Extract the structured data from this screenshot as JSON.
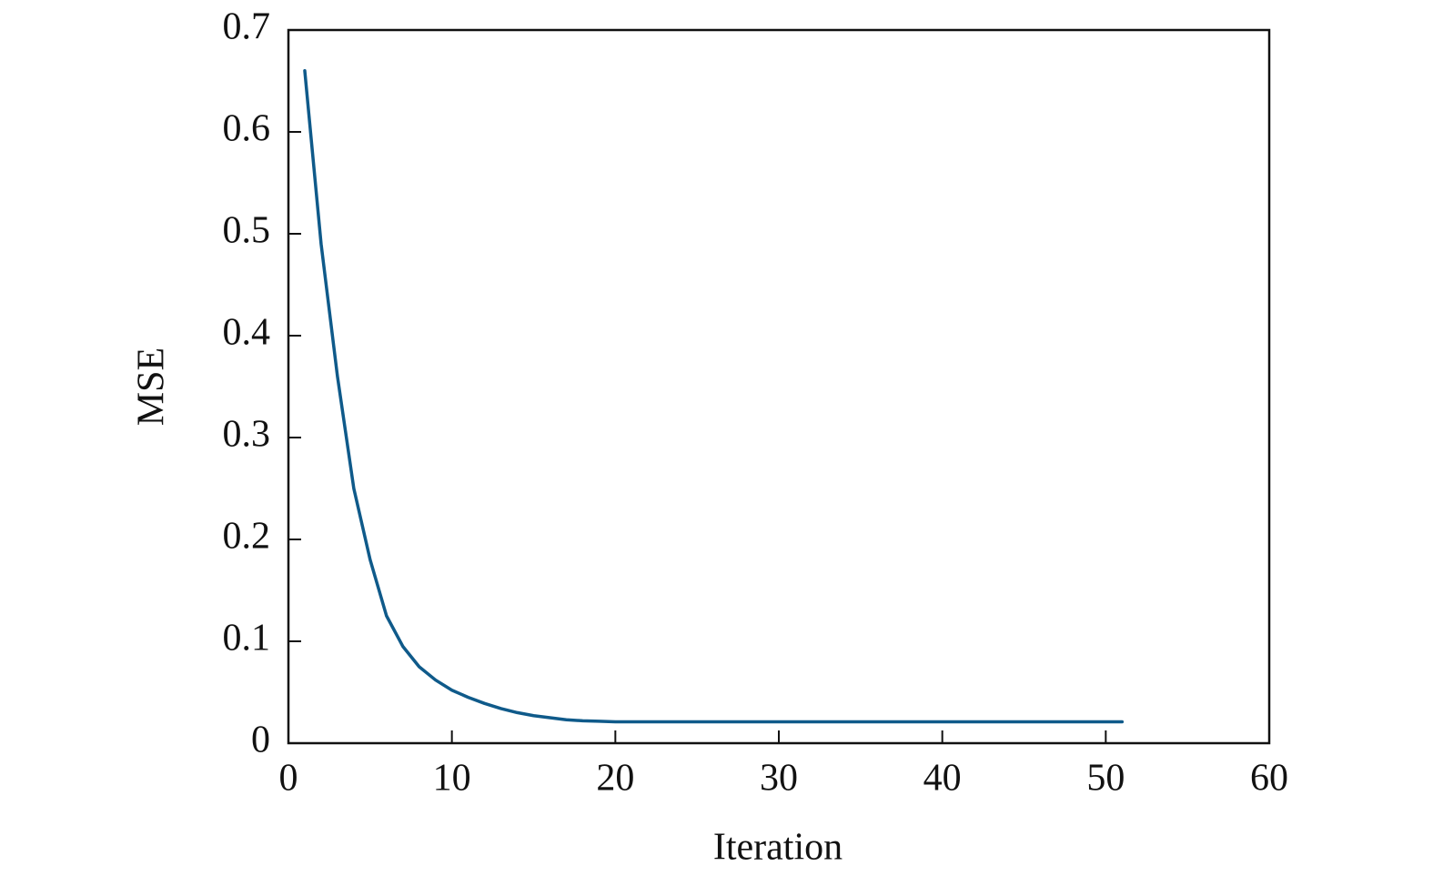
{
  "chart_data": {
    "type": "line",
    "xlabel": "Iteration",
    "ylabel": "MSE",
    "x": [
      1,
      2,
      3,
      4,
      5,
      6,
      7,
      8,
      9,
      10,
      11,
      12,
      13,
      14,
      15,
      16,
      17,
      18,
      19,
      20,
      21,
      22,
      23,
      24,
      25,
      26,
      27,
      28,
      29,
      30,
      31,
      32,
      33,
      34,
      35,
      36,
      37,
      38,
      39,
      40,
      41,
      42,
      43,
      44,
      45,
      46,
      47,
      48,
      49,
      50,
      51
    ],
    "series": [
      {
        "color": "#0f5a8a",
        "values": [
          0.66,
          0.49,
          0.36,
          0.25,
          0.18,
          0.125,
          0.095,
          0.075,
          0.062,
          0.052,
          0.045,
          0.039,
          0.034,
          0.03,
          0.027,
          0.025,
          0.023,
          0.022,
          0.0215,
          0.021,
          0.021,
          0.021,
          0.021,
          0.021,
          0.021,
          0.021,
          0.021,
          0.021,
          0.021,
          0.021,
          0.021,
          0.021,
          0.021,
          0.021,
          0.021,
          0.021,
          0.021,
          0.021,
          0.021,
          0.021,
          0.021,
          0.021,
          0.021,
          0.021,
          0.021,
          0.021,
          0.021,
          0.021,
          0.021,
          0.021,
          0.021
        ]
      }
    ],
    "xlim": [
      0,
      60
    ],
    "xticks": [
      0,
      10,
      20,
      30,
      40,
      50,
      60
    ],
    "ylim": [
      0,
      0.7
    ],
    "yticks": [
      0,
      0.1,
      0.2,
      0.3,
      0.4,
      0.5,
      0.6,
      0.7
    ],
    "grid": false
  }
}
